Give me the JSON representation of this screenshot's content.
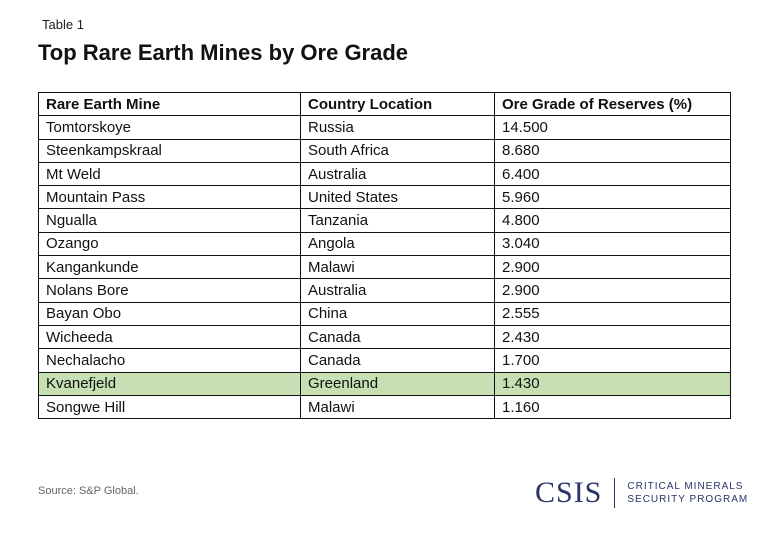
{
  "label": "Table 1",
  "title": "Top Rare Earth Mines by Ore Grade",
  "headers": [
    "Rare Earth Mine",
    "Country Location",
    "Ore Grade of Reserves (%)"
  ],
  "rows": [
    [
      "Tomtorskoye",
      "Russia",
      "14.500"
    ],
    [
      "Steenkampskraal",
      "South Africa",
      "8.680"
    ],
    [
      "Mt Weld",
      "Australia",
      "6.400"
    ],
    [
      "Mountain Pass",
      "United States",
      "5.960"
    ],
    [
      "Ngualla",
      "Tanzania",
      "4.800"
    ],
    [
      "Ozango",
      "Angola",
      "3.040"
    ],
    [
      "Kangankunde",
      "Malawi",
      "2.900"
    ],
    [
      "Nolans Bore",
      "Australia",
      "2.900"
    ],
    [
      "Bayan Obo",
      "China",
      "2.555"
    ],
    [
      "Wicheeda",
      "Canada",
      "2.430"
    ],
    [
      "Nechalacho",
      "Canada",
      "1.700"
    ],
    [
      "Kvanefjeld",
      "Greenland",
      "1.430"
    ],
    [
      "Songwe Hill",
      "Malawi",
      "1.160"
    ]
  ],
  "highlight_row": 11,
  "highlight_color": "#c6e0b4",
  "source": "Source: S&P Global.",
  "logo": {
    "name": "CSIS",
    "line1": "CRITICAL MINERALS",
    "line2": "SECURITY PROGRAM",
    "color": "#2b3467"
  }
}
